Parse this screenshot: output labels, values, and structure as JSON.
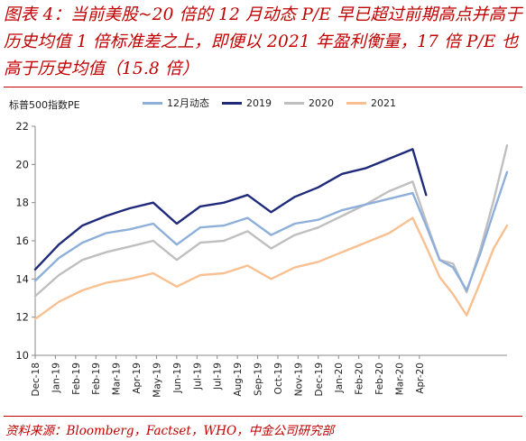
{
  "title": "图表 4：当前美股~20 倍的 12 月动态 P/E 早已超过前期高点并高于历史均值 1 倍标准差之上，即便以 2021 年盈利衡量，17 倍 P/E 也高于历史均值（15.8 倍）",
  "source": "资料来源：Bloomberg，Factset，WHO，中金公司研究部",
  "chart_data": {
    "type": "line",
    "ylabel": "标普500指数PE",
    "ylim": [
      10,
      22
    ],
    "yticks": [
      "10",
      "12",
      "14",
      "16",
      "18",
      "20",
      "22"
    ],
    "categories": [
      "Dec-18",
      "Jan-19",
      "Feb-19",
      "Feb-19",
      "Mar-19",
      "Apr-19",
      "May-19",
      "Jun-19",
      "Jul-19",
      "Jul-19",
      "Aug-19",
      "Sep-19",
      "Oct-19",
      "Nov-19",
      "Dec-19",
      "Jan-20",
      "Feb-20",
      "Feb-20",
      "Mar-20",
      "Apr-20"
    ],
    "x": [
      0,
      14,
      28,
      42,
      56,
      70,
      84,
      98,
      112,
      126,
      140,
      154,
      168,
      182,
      196,
      210,
      224,
      232,
      240,
      248,
      256,
      264,
      272,
      280
    ],
    "xtick_x": [
      0,
      12,
      24,
      36,
      48,
      60,
      72,
      84,
      96,
      108,
      120,
      132,
      144,
      156,
      168,
      180,
      192,
      204,
      216,
      228
    ],
    "legend_position": "top",
    "series": [
      {
        "name": "12月动态",
        "color": "#8EAFDA",
        "values": [
          13.9,
          15.1,
          15.9,
          16.4,
          16.6,
          16.9,
          15.8,
          16.7,
          16.8,
          17.2,
          16.3,
          16.9,
          17.1,
          17.6,
          17.9,
          18.2,
          18.5,
          16.8,
          15.0,
          14.6,
          13.4,
          15.3,
          17.5,
          19.6
        ]
      },
      {
        "name": "2019",
        "color": "#1F2A7A",
        "values": [
          14.5,
          15.8,
          16.8,
          17.3,
          17.7,
          18.0,
          16.9,
          17.8,
          18.0,
          18.4,
          17.5,
          18.3,
          18.8,
          19.5,
          19.8,
          20.3,
          20.8,
          18.4,
          null,
          null,
          null,
          null,
          null,
          null
        ]
      },
      {
        "name": "2020",
        "color": "#BFBFBF",
        "values": [
          13.1,
          14.2,
          15.0,
          15.4,
          15.7,
          16.0,
          15.0,
          15.9,
          16.0,
          16.5,
          15.6,
          16.3,
          16.7,
          17.3,
          17.9,
          18.6,
          19.1,
          17.0,
          15.0,
          14.8,
          13.3,
          15.5,
          18.1,
          21.0
        ]
      },
      {
        "name": "2021",
        "color": "#F8C090",
        "values": [
          11.9,
          12.8,
          13.4,
          13.8,
          14.0,
          14.3,
          13.6,
          14.2,
          14.3,
          14.7,
          14.0,
          14.6,
          14.9,
          15.4,
          15.9,
          16.4,
          17.2,
          15.7,
          14.1,
          13.2,
          12.1,
          13.8,
          15.6,
          16.8
        ]
      }
    ]
  }
}
